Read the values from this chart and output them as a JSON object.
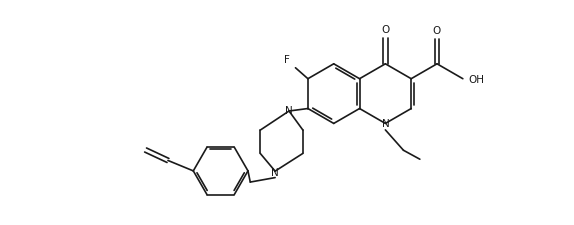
{
  "background_color": "#ffffff",
  "line_color": "#1a1a1a",
  "line_width": 1.2,
  "fig_width": 5.74,
  "fig_height": 2.26,
  "dpi": 100,
  "xlim": [
    0,
    11.48
  ],
  "ylim": [
    0,
    4.52
  ]
}
